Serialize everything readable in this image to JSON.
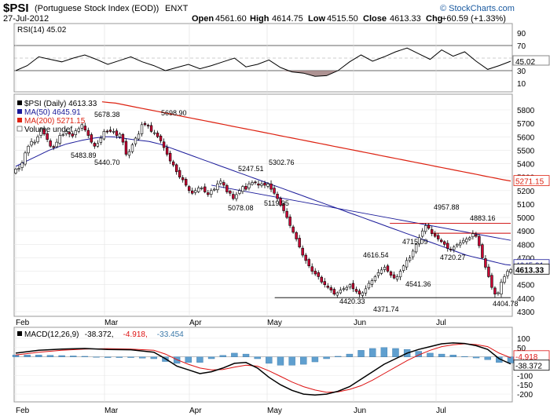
{
  "header": {
    "symbol": "$PSI",
    "name": "(Portuguese Stock Index (EOD))",
    "exchange": "ENXT",
    "date": "27-Jul-2012",
    "open_label": "Open",
    "open_value": "4561.60",
    "high_label": "High",
    "high_value": "4614.75",
    "low_label": "Low",
    "low_value": "4515.50",
    "close_label": "Close",
    "close_value": "4613.33",
    "chg_label": "Chg",
    "chg_value": "+60.59 (+1.33%)",
    "watermark": "© StockCharts.com"
  },
  "colors": {
    "up_candle": "#ffffff",
    "down_candle": "#cc0033",
    "ma50": "#1a1a99",
    "ma200": "#dd2211",
    "macd_line": "#000000",
    "signal_line": "#dd1111",
    "histogram": "#5f9fcf",
    "rsi_fill": "#a08080"
  },
  "months": [
    "Feb",
    "Mar",
    "Apr",
    "May",
    "Jun",
    "Jul"
  ],
  "chart_data": [
    {
      "type": "line",
      "title": "RSI(14) 45.02",
      "ylim": [
        0,
        100
      ],
      "ticks": [
        90,
        70,
        50,
        30,
        10
      ],
      "current_label": "45.02",
      "x_days": [
        0,
        4,
        8,
        12,
        16,
        20,
        24,
        28,
        32,
        36,
        40,
        44,
        48,
        52,
        56,
        60,
        64,
        68,
        72,
        76,
        80,
        84,
        88,
        92,
        96,
        100,
        104,
        108,
        112,
        116,
        120,
        124,
        128,
        132,
        136,
        140,
        144,
        148,
        152,
        156,
        160,
        164,
        168,
        172
      ],
      "values": [
        30,
        38,
        52,
        48,
        44,
        50,
        55,
        48,
        40,
        46,
        52,
        44,
        38,
        30,
        35,
        40,
        33,
        38,
        44,
        50,
        36,
        40,
        47,
        35,
        28,
        26,
        21,
        22,
        30,
        44,
        55,
        45,
        52,
        60,
        66,
        57,
        48,
        63,
        53,
        60,
        45,
        32,
        38,
        45
      ]
    },
    {
      "type": "candlestick",
      "title": "$PSI (Daily) 4613.33",
      "legend": [
        {
          "label": "$PSI (Daily) 4613.33",
          "color": "#000000"
        },
        {
          "label": "MA(50) 4645.91",
          "color": "#1a1a99"
        },
        {
          "label": "MA(200) 5271.15",
          "color": "#dd2211"
        },
        {
          "label": "Volume undef",
          "color": "#000000"
        }
      ],
      "ylim": [
        4300,
        5800
      ],
      "ticks": [
        5800,
        5700,
        5600,
        5500,
        5400,
        5300,
        5200,
        5100,
        5000,
        4900,
        4800,
        4700,
        4600,
        4500,
        4400,
        4300
      ],
      "right_labels": [
        {
          "value": 5271.15,
          "text": "5271.15"
        },
        {
          "value": 4645.91,
          "text": "4645.91"
        },
        {
          "value": 4613.33,
          "text": "4613.33"
        }
      ],
      "closes": [
        5360,
        5365,
        5405,
        5480,
        5530,
        5565,
        5560,
        5600,
        5660,
        5620,
        5580,
        5530,
        5520,
        5560,
        5610,
        5615,
        5640,
        5620,
        5605,
        5645,
        5660,
        5690,
        5650,
        5610,
        5560,
        5530,
        5550,
        5590,
        5640,
        5640,
        5640,
        5640,
        5610,
        5620,
        5560,
        5470,
        5490,
        5540,
        5590,
        5620,
        5690,
        5690,
        5680,
        5640,
        5630,
        5600,
        5570,
        5520,
        5470,
        5420,
        5390,
        5340,
        5300,
        5280,
        5240,
        5200,
        5180,
        5200,
        5220,
        5220,
        5190,
        5170,
        5200,
        5210,
        5250,
        5270,
        5240,
        5190,
        5180,
        5140,
        5170,
        5200,
        5230,
        5210,
        5250,
        5260,
        5260,
        5240,
        5250,
        5240,
        5250,
        5210,
        5180,
        5140,
        5090,
        5050,
        5000,
        4940,
        4890,
        4840,
        4780,
        4720,
        4680,
        4640,
        4600,
        4580,
        4560,
        4520,
        4500,
        4480,
        4460,
        4430,
        4440,
        4460,
        4470,
        4480,
        4500,
        4470,
        4450,
        4430,
        4440,
        4470,
        4510,
        4530,
        4560,
        4590,
        4610,
        4630,
        4600,
        4570,
        4550,
        4560,
        4600,
        4640,
        4680,
        4700,
        4750,
        4800,
        4850,
        4900,
        4940,
        4920,
        4880,
        4860,
        4840,
        4820,
        4800,
        4770,
        4760,
        4780,
        4800,
        4810,
        4830,
        4840,
        4850,
        4880,
        4860,
        4790,
        4700,
        4630,
        4560,
        4480,
        4430,
        4440,
        4520,
        4560,
        4600,
        4613
      ],
      "ma50": [
        5380,
        5400,
        5420,
        5440,
        5460,
        5480,
        5500,
        5515,
        5530,
        5545,
        5555,
        5565,
        5575,
        5582,
        5590,
        5595,
        5600,
        5600,
        5598,
        5592,
        5585,
        5580,
        5575,
        5570,
        5565,
        5555,
        5545,
        5530,
        5515,
        5500,
        5485,
        5470,
        5455,
        5440,
        5425,
        5410,
        5395,
        5380,
        5365,
        5350,
        5335,
        5320,
        5305,
        5290,
        5275,
        5260,
        5245,
        5230,
        5215,
        5200,
        5185,
        5170,
        5155,
        5140,
        5125,
        5110,
        5095,
        5080,
        5065,
        5050,
        5035,
        5020,
        5005,
        4990,
        4975,
        4960,
        4945,
        4930,
        4915,
        4900,
        4885,
        4870,
        4855,
        4840,
        4825,
        4810,
        4795,
        4780,
        4765,
        4750,
        4735,
        4720,
        4710,
        4700,
        4690,
        4680,
        4670,
        4660,
        4650,
        4646
      ],
      "ma200": [
        5860,
        5855,
        5850,
        5840,
        5830,
        5820,
        5810,
        5800,
        5790,
        5780,
        5770,
        5760,
        5750,
        5740,
        5730,
        5720,
        5710,
        5700,
        5690,
        5680,
        5670,
        5660,
        5650,
        5640,
        5630,
        5620,
        5610,
        5600,
        5590,
        5580,
        5570,
        5560,
        5550,
        5540,
        5530,
        5520,
        5510,
        5500,
        5490,
        5480,
        5470,
        5460,
        5450,
        5440,
        5430,
        5420,
        5410,
        5400,
        5390,
        5380,
        5370,
        5360,
        5350,
        5340,
        5330,
        5320,
        5310,
        5300,
        5290,
        5280,
        5271
      ],
      "price_labels": [
        "5678.38",
        "5698.90",
        "5483.89",
        "5440.70",
        "5247.51",
        "5302.76",
        "5078.08",
        "5119.95",
        "4957.88",
        "4883.16",
        "4715.09",
        "4720.27",
        "4616.54",
        "4541.36",
        "4420.33",
        "4371.74",
        "4404.78"
      ],
      "trendlines": [
        {
          "name": "downtrend",
          "from": [
            68,
            5240
          ],
          "to": [
            172,
            4830
          ]
        },
        {
          "name": "resistance",
          "from": [
            130,
            4957
          ],
          "to": [
            172,
            4957
          ]
        },
        {
          "name": "resistance-2",
          "from": [
            145,
            4883
          ],
          "to": [
            172,
            4883
          ]
        },
        {
          "name": "support",
          "from": [
            90,
            4404
          ],
          "to": [
            172,
            4404
          ]
        }
      ]
    },
    {
      "type": "line",
      "title": "MACD(12,26,9) -38.372, -4.918, -33.454",
      "legend_parts": [
        "MACD(12,26,9)",
        "-38.372,",
        "-4.918,",
        "-33.454"
      ],
      "ylim": [
        -225,
        125
      ],
      "ticks": [
        100,
        50,
        0,
        -50,
        -100,
        -150,
        -200
      ],
      "current_labels": [
        "-4.918",
        "-38.372"
      ],
      "x_days": [
        0,
        8,
        16,
        24,
        32,
        40,
        48,
        52,
        56,
        60,
        64,
        68,
        72,
        76,
        80,
        84,
        88,
        92,
        96,
        100,
        104,
        108,
        112,
        116,
        120,
        124,
        128,
        132,
        136,
        140,
        144,
        148,
        152,
        156,
        160,
        164,
        168,
        172
      ],
      "macd": [
        20,
        35,
        42,
        45,
        40,
        38,
        25,
        -10,
        -50,
        -70,
        -90,
        -80,
        -60,
        -35,
        -30,
        -60,
        -110,
        -150,
        -180,
        -200,
        -205,
        -200,
        -185,
        -160,
        -120,
        -80,
        -40,
        -10,
        20,
        40,
        55,
        70,
        75,
        72,
        60,
        40,
        -10,
        -38
      ],
      "signal": [
        10,
        25,
        35,
        42,
        44,
        42,
        35,
        15,
        -15,
        -40,
        -60,
        -70,
        -68,
        -55,
        -45,
        -50,
        -75,
        -105,
        -135,
        -160,
        -178,
        -190,
        -188,
        -175,
        -155,
        -125,
        -90,
        -55,
        -20,
        10,
        35,
        55,
        65,
        70,
        66,
        55,
        20,
        -5
      ],
      "histogram": [
        10,
        10,
        7,
        3,
        -4,
        -4,
        -10,
        -25,
        -35,
        -30,
        -30,
        -10,
        8,
        20,
        15,
        -10,
        -35,
        -45,
        -45,
        -40,
        -27,
        -10,
        3,
        15,
        35,
        45,
        50,
        45,
        40,
        30,
        20,
        15,
        10,
        2,
        -6,
        -15,
        -30,
        -33
      ]
    }
  ]
}
